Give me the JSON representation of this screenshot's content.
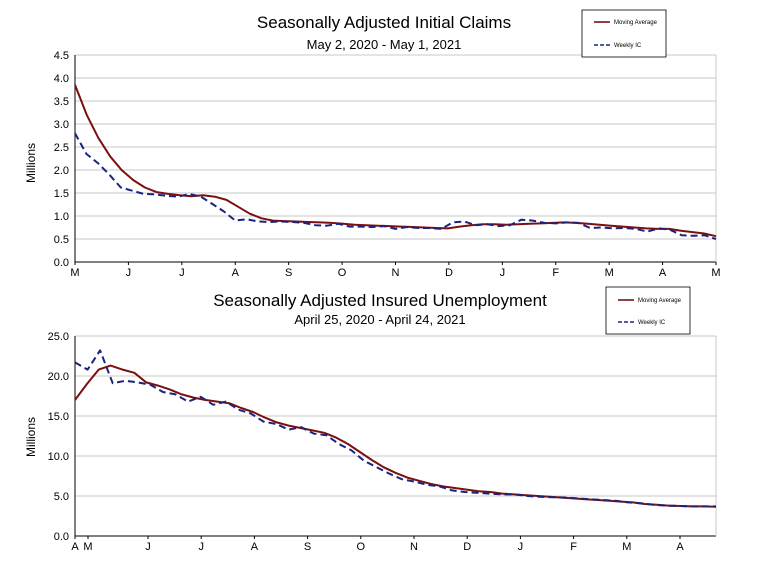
{
  "colors": {
    "moving_average": "#7a1010",
    "weekly": "#1a237e",
    "grid": "#c8c8c8",
    "axis": "#000000"
  },
  "chart_data": [
    {
      "type": "line",
      "title": "Seasonally Adjusted Initial Claims",
      "subtitle": "May 2, 2020 - May 1, 2021",
      "ylabel": "Millions",
      "ylim": [
        0,
        4.5
      ],
      "yticks": [
        "0.0",
        "0.5",
        "1.0",
        "1.5",
        "2.0",
        "2.5",
        "3.0",
        "3.5",
        "4.0",
        "4.5"
      ],
      "xticks": [
        "M",
        "J",
        "J",
        "A",
        "S",
        "O",
        "N",
        "D",
        "J",
        "F",
        "M",
        "A",
        "M"
      ],
      "grid": true,
      "legend": "top-right",
      "series": [
        {
          "name": "Moving Average",
          "style": "solid",
          "values": [
            3.85,
            3.2,
            2.7,
            2.3,
            2.0,
            1.78,
            1.62,
            1.52,
            1.48,
            1.45,
            1.43,
            1.45,
            1.42,
            1.35,
            1.2,
            1.05,
            0.95,
            0.9,
            0.89,
            0.88,
            0.87,
            0.86,
            0.85,
            0.83,
            0.81,
            0.8,
            0.79,
            0.78,
            0.77,
            0.76,
            0.75,
            0.74,
            0.73,
            0.77,
            0.8,
            0.82,
            0.82,
            0.81,
            0.82,
            0.83,
            0.84,
            0.85,
            0.86,
            0.85,
            0.83,
            0.81,
            0.79,
            0.77,
            0.75,
            0.73,
            0.72,
            0.72,
            0.68,
            0.65,
            0.62,
            0.56
          ]
        },
        {
          "name": "Weekly IC",
          "style": "dashed",
          "values": [
            2.8,
            2.35,
            2.15,
            1.9,
            1.62,
            1.55,
            1.48,
            1.47,
            1.44,
            1.42,
            1.48,
            1.42,
            1.26,
            1.1,
            0.9,
            0.93,
            0.88,
            0.87,
            0.88,
            0.87,
            0.85,
            0.8,
            0.79,
            0.83,
            0.77,
            0.77,
            0.76,
            0.78,
            0.72,
            0.76,
            0.74,
            0.74,
            0.72,
            0.86,
            0.88,
            0.8,
            0.82,
            0.78,
            0.8,
            0.92,
            0.9,
            0.85,
            0.84,
            0.86,
            0.85,
            0.74,
            0.75,
            0.73,
            0.74,
            0.72,
            0.66,
            0.73,
            0.7,
            0.58,
            0.57,
            0.58,
            0.5
          ]
        }
      ]
    },
    {
      "type": "line",
      "title": "Seasonally Adjusted Insured Unemployment",
      "subtitle": "April 25, 2020 - April 24, 2021",
      "ylabel": "Millions",
      "ylim": [
        0,
        25
      ],
      "yticks": [
        "0.0",
        "5.0",
        "10.0",
        "15.0",
        "20.0",
        "25.0"
      ],
      "xticks": [
        "A",
        "M",
        "J",
        "J",
        "A",
        "S",
        "O",
        "N",
        "D",
        "J",
        "F",
        "M",
        "A"
      ],
      "grid": true,
      "legend": "top-right",
      "series": [
        {
          "name": "Moving Average",
          "style": "solid",
          "values": [
            17.0,
            19.0,
            20.8,
            21.3,
            20.8,
            20.4,
            19.2,
            18.8,
            18.3,
            17.7,
            17.3,
            17.0,
            16.8,
            16.6,
            16.0,
            15.5,
            14.8,
            14.2,
            13.8,
            13.5,
            13.2,
            12.9,
            12.3,
            11.5,
            10.5,
            9.5,
            8.6,
            7.9,
            7.3,
            6.9,
            6.5,
            6.2,
            6.0,
            5.8,
            5.6,
            5.5,
            5.3,
            5.2,
            5.1,
            5.0,
            4.9,
            4.8,
            4.7,
            4.6,
            4.5,
            4.4,
            4.3,
            4.2,
            4.0,
            3.9,
            3.8,
            3.75,
            3.7,
            3.7,
            3.65
          ]
        },
        {
          "name": "Weekly IC",
          "style": "dashed",
          "values": [
            21.7,
            20.8,
            23.2,
            19.1,
            19.4,
            19.2,
            18.9,
            18.0,
            17.7,
            16.8,
            17.4,
            16.4,
            16.8,
            15.8,
            15.3,
            14.3,
            14.0,
            13.3,
            13.6,
            12.8,
            12.6,
            11.5,
            10.7,
            9.4,
            8.6,
            7.8,
            7.1,
            6.8,
            6.4,
            6.2,
            5.7,
            5.5,
            5.4,
            5.3,
            5.2,
            5.2,
            5.0,
            4.9,
            4.85,
            4.8,
            4.7,
            4.6,
            4.5,
            4.4,
            4.2,
            4.1,
            3.9,
            3.8,
            3.75,
            3.7,
            3.7,
            3.7
          ]
        }
      ]
    }
  ]
}
